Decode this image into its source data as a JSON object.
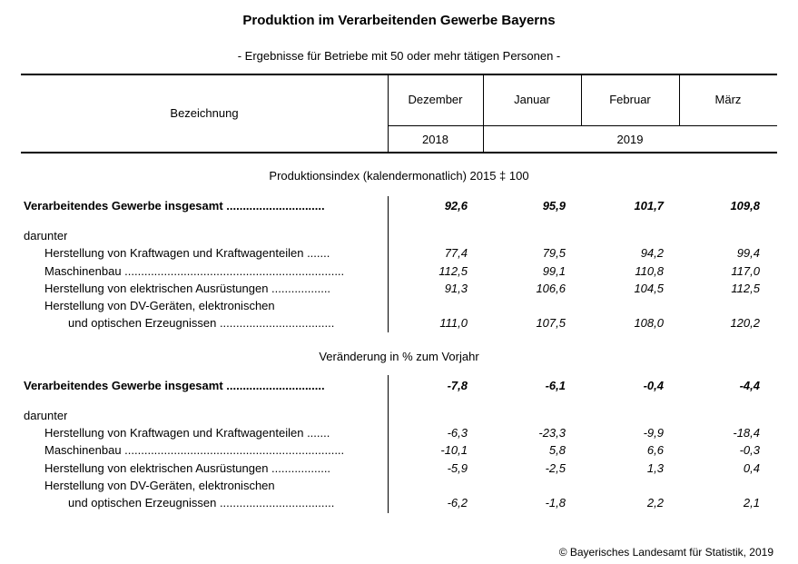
{
  "title": "Produktion im Verarbeitenden Gewerbe Bayerns",
  "subtitle": "- Ergebnisse für Betriebe mit 50 oder mehr tätigen Personen -",
  "header": {
    "label_col": "Bezeichnung",
    "months": [
      "Dezember",
      "Januar",
      "Februar",
      "März"
    ],
    "year_2018": "2018",
    "year_2019": "2019"
  },
  "sections": [
    {
      "title": "Produktionsindex (kalendermonatlich) 2015 ‡ 100",
      "total": {
        "label": "Verarbeitendes Gewerbe insgesamt ..............................",
        "values": [
          "92,6",
          "95,9",
          "101,7",
          "109,8"
        ]
      },
      "darunter": "darunter",
      "rows": [
        {
          "label": "Herstellung von Kraftwagen und Kraftwagenteilen .......",
          "values": [
            "77,4",
            "79,5",
            "94,2",
            "99,4"
          ]
        },
        {
          "label": "Maschinenbau ...................................................................",
          "values": [
            "112,5",
            "99,1",
            "110,8",
            "117,0"
          ]
        },
        {
          "label": "Herstellung von elektrischen Ausrüstungen ..................",
          "values": [
            "91,3",
            "106,6",
            "104,5",
            "112,5"
          ]
        },
        {
          "label": "Herstellung von DV-Geräten, elektronischen",
          "label2": "und optischen Erzeugnissen ...................................",
          "values": [
            "111,0",
            "107,5",
            "108,0",
            "120,2"
          ]
        }
      ]
    },
    {
      "title": "Veränderung in % zum Vorjahr",
      "total": {
        "label": "Verarbeitendes Gewerbe insgesamt ..............................",
        "values": [
          "-7,8",
          "-6,1",
          "-0,4",
          "-4,4"
        ]
      },
      "darunter": "darunter",
      "rows": [
        {
          "label": "Herstellung von Kraftwagen und Kraftwagenteilen .......",
          "values": [
            "-6,3",
            "-23,3",
            "-9,9",
            "-18,4"
          ]
        },
        {
          "label": "Maschinenbau ...................................................................",
          "values": [
            "-10,1",
            "5,8",
            "6,6",
            "-0,3"
          ]
        },
        {
          "label": "Herstellung von elektrischen Ausrüstungen ..................",
          "values": [
            "-5,9",
            "-2,5",
            "1,3",
            "0,4"
          ]
        },
        {
          "label": "Herstellung von DV-Geräten, elektronischen",
          "label2": "und optischen Erzeugnissen ...................................",
          "values": [
            "-6,2",
            "-1,8",
            "2,2",
            "2,1"
          ]
        }
      ]
    }
  ],
  "copyright": "© Bayerisches Landesamt für Statistik, 2019"
}
